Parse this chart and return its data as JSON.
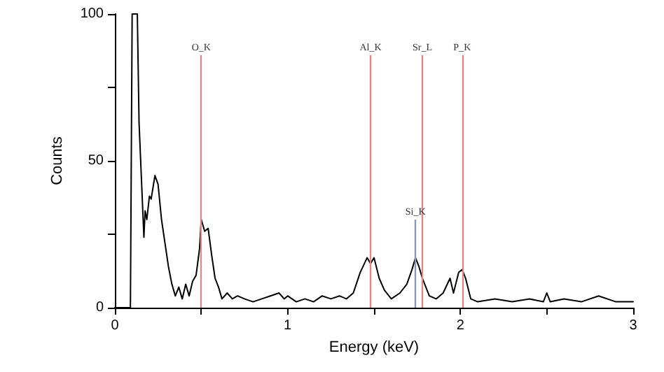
{
  "chart_data": {
    "type": "line",
    "xlabel": "Energy (keV)",
    "ylabel": "Counts",
    "xlim": [
      0,
      3
    ],
    "xticks": [
      0,
      {
        "value": 0.5,
        "label": null
      },
      1,
      {
        "value": 1.5,
        "label": null
      },
      2,
      {
        "value": 2.5,
        "label": null
      },
      3
    ],
    "ylim": [
      0,
      100
    ],
    "yticks": [
      0,
      {
        "value": 25,
        "label": null
      },
      50,
      {
        "value": 75,
        "label": null
      },
      100
    ],
    "grid": false,
    "marker": "none",
    "line_style": "solid",
    "series": [
      {
        "color": "#000000",
        "x": [
          0,
          0.09,
          0.1,
          0.13,
          0.14,
          0.168,
          0.175,
          0.185,
          0.2,
          0.21,
          0.232,
          0.25,
          0.27,
          0.29,
          0.31,
          0.33,
          0.35,
          0.37,
          0.39,
          0.41,
          0.43,
          0.45,
          0.47,
          0.49,
          0.5,
          0.52,
          0.54,
          0.56,
          0.58,
          0.6,
          0.62,
          0.65,
          0.68,
          0.71,
          0.75,
          0.8,
          0.85,
          0.9,
          0.95,
          0.98,
          1.0,
          1.05,
          1.1,
          1.15,
          1.2,
          1.25,
          1.3,
          1.34,
          1.38,
          1.42,
          1.46,
          1.48,
          1.5,
          1.53,
          1.56,
          1.6,
          1.65,
          1.69,
          1.72,
          1.74,
          1.76,
          1.78,
          1.82,
          1.86,
          1.9,
          1.94,
          1.96,
          1.99,
          2.01,
          2.03,
          2.06,
          2.1,
          2.2,
          2.3,
          2.4,
          2.48,
          2.5,
          2.52,
          2.6,
          2.7,
          2.8,
          2.9,
          3.0
        ],
        "values": [
          0,
          0,
          100,
          100,
          63,
          24,
          33,
          30,
          38,
          37,
          45,
          42,
          30,
          22,
          14,
          8,
          4,
          7,
          3,
          8,
          4,
          9,
          11,
          20,
          30,
          26,
          27,
          18,
          10,
          7,
          3,
          5,
          3,
          4,
          3,
          2,
          3,
          4,
          5,
          3,
          4,
          2,
          3,
          2,
          4,
          3,
          4,
          3,
          5,
          12,
          17,
          15,
          17,
          10,
          6,
          3,
          5,
          8,
          13,
          17,
          14,
          10,
          4,
          3,
          5,
          10,
          5,
          12,
          13,
          10,
          3,
          2,
          3,
          2,
          3,
          2,
          5,
          2,
          3,
          2,
          4,
          2,
          2
        ]
      }
    ],
    "ref_lines": [
      {
        "axis": "x",
        "value": 0.5,
        "label": "O_K",
        "color": "#d98b8b"
      },
      {
        "axis": "x",
        "value": 1.48,
        "label": "Al_K",
        "color": "#d98b8b"
      },
      {
        "axis": "x",
        "value": 1.74,
        "label": "Si_K",
        "color": "#8a9bb0"
      },
      {
        "axis": "x",
        "value": 1.78,
        "label": "Sr_L",
        "color": "#d98b8b"
      },
      {
        "axis": "x",
        "value": 2.01,
        "label": "P_K",
        "color": "#d98b8b"
      }
    ]
  }
}
